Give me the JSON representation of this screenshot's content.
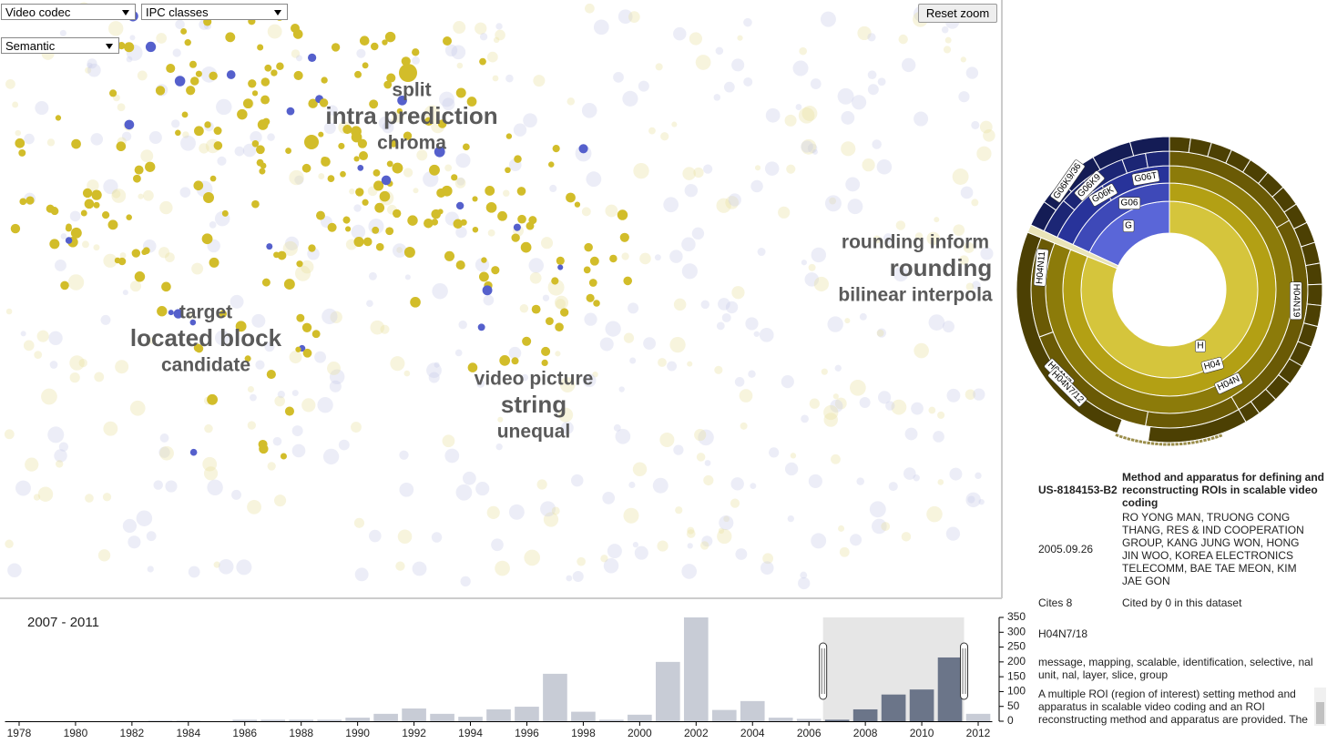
{
  "controls": {
    "dataset": "Video codec",
    "classification": "IPC classes",
    "layout": "Semantic",
    "reset": "Reset zoom"
  },
  "clusters": [
    {
      "terms": [
        "split",
        "intra prediction",
        "chroma"
      ]
    },
    {
      "terms": [
        "target",
        "located block",
        "candidate"
      ]
    },
    {
      "terms": [
        "video picture",
        "string",
        "unequal"
      ]
    },
    {
      "terms": [
        "rounding inform",
        "rounding",
        "bilinear interpola"
      ]
    }
  ],
  "sunburst": {
    "labels": [
      "G",
      "G06",
      "G06K",
      "G06K9",
      "G06K9/36",
      "G06T",
      "H",
      "H04",
      "H04N",
      "H04N7",
      "H04N7/12",
      "H04N11",
      "H04N19"
    ]
  },
  "patent": {
    "id": "US-8184153-B2",
    "title": "Method and apparatus for defining and reconstructing ROIs in scalable video coding",
    "date": "2005.09.26",
    "authors": "RO YONG MAN, TRUONG CONG THANG, RES & IND COOPERATION GROUP, KANG JUNG WON, HONG JIN WOO, KOREA ELECTRONICS TELECOMM, BAE TAE MEON, KIM JAE GON",
    "cites": "Cites 8",
    "cited_by": "Cited by 0 in this dataset",
    "class": "H04N7/18",
    "keywords": "message, mapping, scalable, identification, selective, nal unit, nal, layer, slice, group",
    "abstract": "A multiple ROI (region of interest) setting method and apparatus in scalable video coding and an ROI reconstructing method and apparatus are provided. The"
  },
  "chart_data": {
    "type": "bar",
    "selection_label": "2007 - 2011",
    "x": [
      1978,
      1979,
      1980,
      1981,
      1982,
      1983,
      1984,
      1985,
      1986,
      1987,
      1988,
      1989,
      1990,
      1991,
      1992,
      1993,
      1994,
      1995,
      1996,
      1997,
      1998,
      1999,
      2000,
      2001,
      2002,
      2003,
      2004,
      2005,
      2006,
      2007,
      2008,
      2009,
      2010,
      2011,
      2012
    ],
    "values": [
      1,
      0,
      1,
      0,
      1,
      2,
      2,
      0,
      5,
      5,
      5,
      5,
      12,
      25,
      43,
      25,
      15,
      40,
      49,
      160,
      32,
      5,
      22,
      200,
      350,
      38,
      68,
      12,
      8,
      5,
      40,
      90,
      107,
      215,
      25
    ],
    "color": "#c8ccd6",
    "selected_color": "#6b7589",
    "selection": [
      2007,
      2011
    ],
    "xlim": [
      1977.5,
      2012.5
    ],
    "xticks": [
      1978,
      1980,
      1982,
      1984,
      1986,
      1988,
      1990,
      1992,
      1994,
      1996,
      1998,
      2000,
      2002,
      2004,
      2006,
      2008,
      2010,
      2012
    ],
    "ylim": [
      0,
      350
    ],
    "yticks": [
      0,
      50,
      100,
      150,
      200,
      250,
      300,
      350
    ]
  }
}
